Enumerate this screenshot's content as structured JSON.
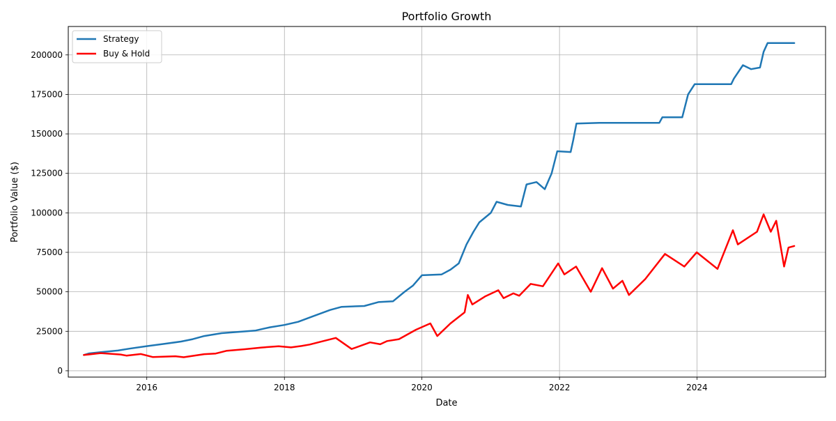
{
  "chart_data": {
    "type": "line",
    "title": "Portfolio Growth",
    "xlabel": "Date",
    "ylabel": "Portfolio Value ($)",
    "xlim": [
      "2014-11-10",
      "2025-11-14"
    ],
    "ylim": [
      -4000,
      218000
    ],
    "x_ticks": [
      "2016",
      "2018",
      "2020",
      "2022",
      "2024"
    ],
    "y_ticks": [
      0,
      25000,
      50000,
      75000,
      100000,
      125000,
      150000,
      175000,
      200000
    ],
    "grid": true,
    "legend_position": "top-left",
    "series": [
      {
        "name": "Strategy",
        "color": "#1f77b4",
        "points": [
          [
            "2015-02-01",
            10000
          ],
          [
            "2015-03-01",
            11000
          ],
          [
            "2015-05-01",
            11800
          ],
          [
            "2015-08-01",
            12800
          ],
          [
            "2015-10-01",
            14000
          ],
          [
            "2016-01-01",
            15600
          ],
          [
            "2016-04-01",
            17000
          ],
          [
            "2016-07-01",
            18500
          ],
          [
            "2016-09-01",
            20000
          ],
          [
            "2016-11-01",
            22000
          ],
          [
            "2017-02-01",
            23800
          ],
          [
            "2017-08-01",
            25500
          ],
          [
            "2017-10-15",
            27500
          ],
          [
            "2018-01-01",
            29000
          ],
          [
            "2018-03-15",
            31000
          ],
          [
            "2018-06-01",
            34500
          ],
          [
            "2018-09-01",
            38500
          ],
          [
            "2018-11-01",
            40500
          ],
          [
            "2019-03-01",
            41000
          ],
          [
            "2019-05-15",
            43500
          ],
          [
            "2019-08-01",
            44000
          ],
          [
            "2019-10-01",
            50000
          ],
          [
            "2019-11-15",
            54000
          ],
          [
            "2020-01-01",
            60500
          ],
          [
            "2020-04-15",
            61000
          ],
          [
            "2020-06-01",
            64000
          ],
          [
            "2020-07-15",
            68000
          ],
          [
            "2020-08-25",
            80000
          ],
          [
            "2020-10-01",
            88000
          ],
          [
            "2020-11-01",
            94000
          ],
          [
            "2021-01-01",
            100000
          ],
          [
            "2021-02-01",
            107000
          ],
          [
            "2021-04-01",
            105000
          ],
          [
            "2021-06-10",
            104000
          ],
          [
            "2021-07-10",
            118000
          ],
          [
            "2021-09-01",
            119500
          ],
          [
            "2021-10-15",
            115000
          ],
          [
            "2021-11-20",
            125000
          ],
          [
            "2021-12-20",
            139000
          ],
          [
            "2022-03-01",
            138500
          ],
          [
            "2022-03-15",
            146000
          ],
          [
            "2022-04-01",
            156500
          ],
          [
            "2022-08-01",
            157000
          ],
          [
            "2023-06-15",
            157000
          ],
          [
            "2023-07-01",
            160500
          ],
          [
            "2023-10-15",
            160500
          ],
          [
            "2023-11-15",
            175000
          ],
          [
            "2023-12-20",
            181500
          ],
          [
            "2024-07-01",
            181500
          ],
          [
            "2024-07-15",
            185000
          ],
          [
            "2024-09-01",
            193500
          ],
          [
            "2024-10-15",
            191000
          ],
          [
            "2024-12-01",
            192000
          ],
          [
            "2024-12-20",
            202000
          ],
          [
            "2025-01-10",
            207500
          ],
          [
            "2025-06-01",
            207500
          ]
        ]
      },
      {
        "name": "Buy & Hold",
        "color": "#ff0000",
        "points": [
          [
            "2015-02-01",
            10000
          ],
          [
            "2015-05-01",
            11200
          ],
          [
            "2015-08-15",
            10300
          ],
          [
            "2015-09-15",
            9600
          ],
          [
            "2015-12-01",
            10600
          ],
          [
            "2016-02-01",
            8700
          ],
          [
            "2016-06-01",
            9200
          ],
          [
            "2016-07-15",
            8600
          ],
          [
            "2016-11-01",
            10500
          ],
          [
            "2017-01-01",
            10900
          ],
          [
            "2017-03-01",
            12700
          ],
          [
            "2017-06-01",
            13600
          ],
          [
            "2017-09-01",
            14700
          ],
          [
            "2017-12-01",
            15500
          ],
          [
            "2018-02-05",
            14800
          ],
          [
            "2018-04-01",
            15700
          ],
          [
            "2018-05-15",
            16600
          ],
          [
            "2018-08-01",
            19000
          ],
          [
            "2018-10-01",
            20800
          ],
          [
            "2018-12-24",
            13800
          ],
          [
            "2019-04-01",
            18000
          ],
          [
            "2019-05-25",
            16800
          ],
          [
            "2019-07-01",
            18800
          ],
          [
            "2019-09-01",
            20000
          ],
          [
            "2019-12-01",
            26000
          ],
          [
            "2020-02-15",
            30000
          ],
          [
            "2020-03-23",
            22000
          ],
          [
            "2020-06-01",
            30000
          ],
          [
            "2020-08-15",
            37000
          ],
          [
            "2020-09-01",
            48000
          ],
          [
            "2020-09-25",
            42000
          ],
          [
            "2020-12-01",
            47000
          ],
          [
            "2021-02-10",
            51000
          ],
          [
            "2021-03-10",
            46000
          ],
          [
            "2021-05-01",
            49000
          ],
          [
            "2021-06-01",
            47500
          ],
          [
            "2021-08-01",
            55000
          ],
          [
            "2021-10-05",
            53500
          ],
          [
            "2021-12-25",
            68000
          ],
          [
            "2022-01-27",
            61000
          ],
          [
            "2022-03-30",
            66000
          ],
          [
            "2022-06-16",
            50000
          ],
          [
            "2022-08-15",
            65000
          ],
          [
            "2022-10-12",
            52000
          ],
          [
            "2022-12-01",
            57000
          ],
          [
            "2023-01-05",
            48000
          ],
          [
            "2023-04-01",
            58000
          ],
          [
            "2023-07-15",
            74000
          ],
          [
            "2023-10-26",
            66000
          ],
          [
            "2023-12-31",
            75000
          ],
          [
            "2024-04-19",
            64500
          ],
          [
            "2024-07-10",
            89000
          ],
          [
            "2024-08-05",
            80000
          ],
          [
            "2024-11-15",
            88000
          ],
          [
            "2024-12-20",
            99000
          ],
          [
            "2025-01-27",
            88000
          ],
          [
            "2025-02-25",
            95000
          ],
          [
            "2025-04-08",
            66000
          ],
          [
            "2025-05-01",
            78000
          ],
          [
            "2025-06-01",
            79000
          ]
        ]
      }
    ]
  }
}
